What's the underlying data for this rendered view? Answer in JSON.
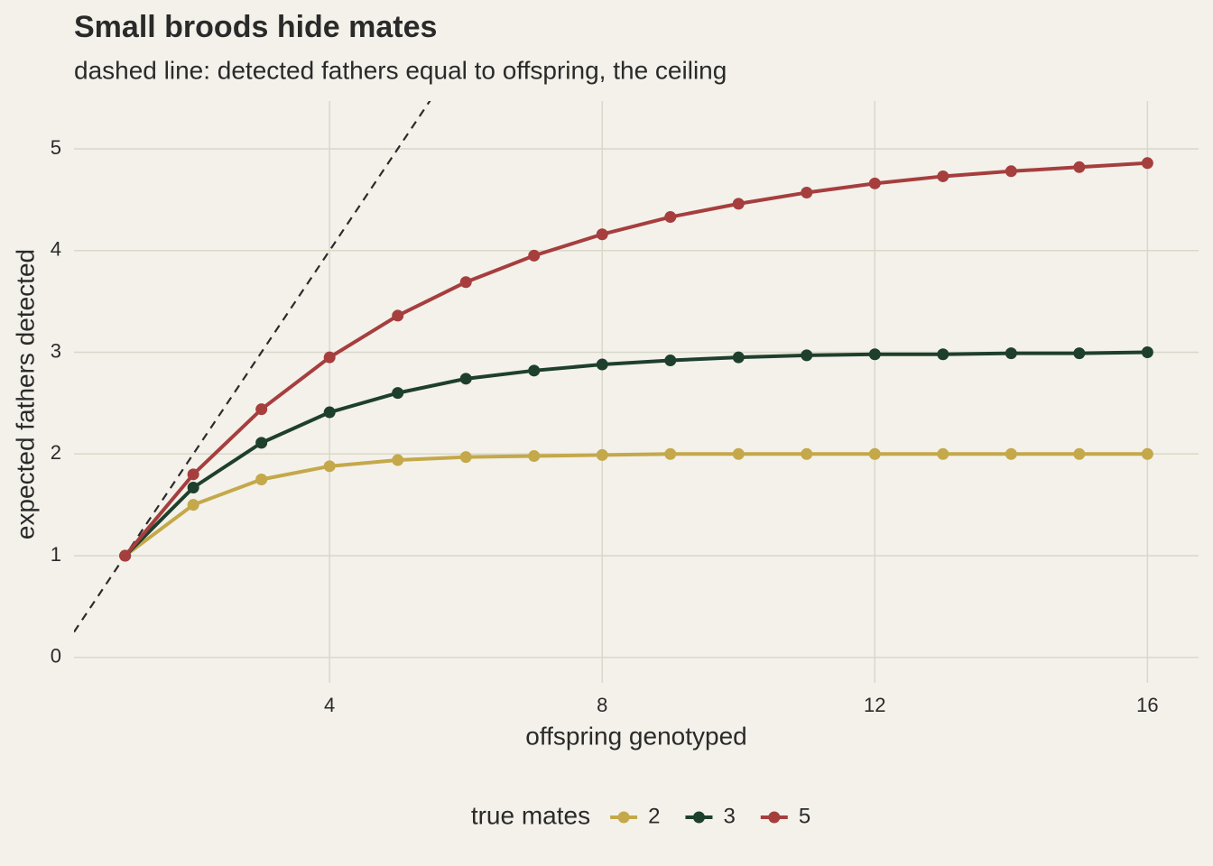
{
  "chart_data": {
    "type": "line",
    "title": "Small broods hide mates",
    "subtitle": "dashed line: detected fathers equal to offspring, the ceiling",
    "x_label": "offspring genotyped",
    "y_label": "expected fathers detected",
    "x": [
      1,
      2,
      3,
      4,
      5,
      6,
      7,
      8,
      9,
      10,
      11,
      12,
      13,
      14,
      15,
      16
    ],
    "series": [
      {
        "name": "2",
        "color": "#c4a84a",
        "values": [
          1,
          1.5,
          1.75,
          1.88,
          1.94,
          1.97,
          1.98,
          1.99,
          2.0,
          2.0,
          2.0,
          2.0,
          2.0,
          2.0,
          2.0,
          2.0
        ]
      },
      {
        "name": "3",
        "color": "#1e3f2c",
        "values": [
          1,
          1.67,
          2.11,
          2.41,
          2.6,
          2.74,
          2.82,
          2.88,
          2.92,
          2.95,
          2.97,
          2.98,
          2.98,
          2.99,
          2.99,
          3.0
        ]
      },
      {
        "name": "5",
        "color": "#a63e3e",
        "values": [
          1,
          1.8,
          2.44,
          2.95,
          3.36,
          3.69,
          3.95,
          4.16,
          4.33,
          4.46,
          4.57,
          4.66,
          4.73,
          4.78,
          4.82,
          4.86
        ]
      }
    ],
    "xlim": [
      0.25,
      16.75
    ],
    "ylim": [
      -0.25,
      5.47
    ],
    "xticks": [
      4,
      8,
      12,
      16
    ],
    "yticks": [
      0,
      1,
      2,
      3,
      4,
      5
    ],
    "grid": true,
    "reference_line": {
      "slope": 1,
      "intercept": 0,
      "dashed": true,
      "color": "#2b2b2b"
    },
    "legend": {
      "title": "true mates",
      "position": "bottom"
    }
  }
}
